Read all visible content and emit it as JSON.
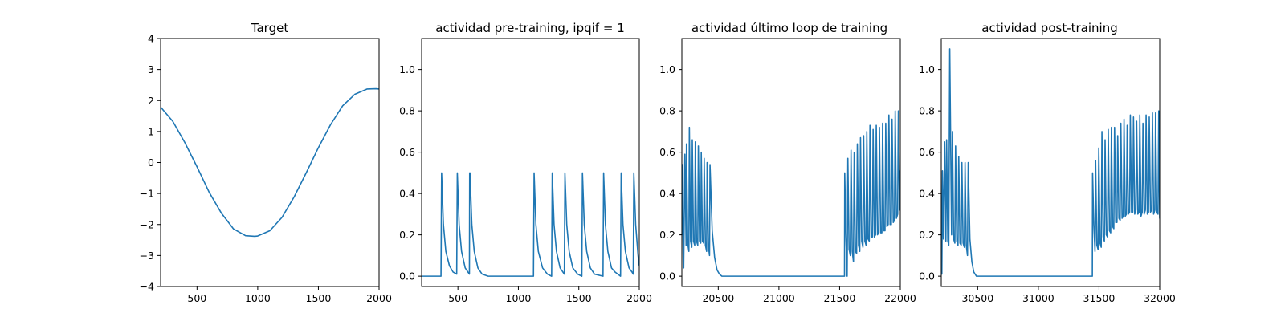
{
  "figure": {
    "background": "#ffffff",
    "line_color": "#1f77b4"
  },
  "chart_data": [
    {
      "type": "line",
      "title": "Target",
      "xlabel": "",
      "ylabel": "",
      "xlim": [
        200,
        2000
      ],
      "ylim": [
        -4,
        4
      ],
      "xticks": [
        500,
        1000,
        1500,
        2000
      ],
      "yticks": [
        -4,
        -3,
        -2,
        -1,
        0,
        1,
        2,
        3,
        4
      ],
      "ytick_labels": [
        "−4",
        "−3",
        "−2",
        "−1",
        "0",
        "1",
        "2",
        "3",
        "4"
      ],
      "grid": false,
      "series": [
        {
          "x": [
            200,
            300,
            400,
            500,
            600,
            700,
            800,
            900,
            975,
            1000,
            1100,
            1200,
            1300,
            1400,
            1500,
            1600,
            1700,
            1800,
            1900,
            1975,
            2000
          ],
          "values": [
            1.79,
            1.33,
            0.64,
            -0.14,
            -0.96,
            -1.63,
            -2.14,
            -2.36,
            -2.38,
            -2.37,
            -2.2,
            -1.77,
            -1.11,
            -0.33,
            0.48,
            1.22,
            1.83,
            2.2,
            2.37,
            2.38,
            2.37
          ]
        }
      ]
    },
    {
      "type": "line",
      "title": "actividad pre-training, ipqif = 1",
      "xlabel": "",
      "ylabel": "",
      "xlim": [
        200,
        2000
      ],
      "ylim": [
        -0.05,
        1.15
      ],
      "xticks": [
        500,
        1000,
        1500,
        2000
      ],
      "yticks": [
        0.0,
        0.2,
        0.4,
        0.6,
        0.8,
        1.0
      ],
      "ytick_labels": [
        "0.0",
        "0.2",
        "0.4",
        "0.6",
        "0.8",
        "1.0"
      ],
      "grid": false,
      "series": [
        {
          "x": [
            200,
            360,
            365,
            380,
            400,
            430,
            460,
            490,
            495,
            510,
            530,
            560,
            595,
            597,
            600,
            615,
            635,
            665,
            700,
            750,
            1125,
            1130,
            1145,
            1165,
            1200,
            1240,
            1275,
            1280,
            1295,
            1315,
            1345,
            1380,
            1385,
            1400,
            1420,
            1450,
            1490,
            1525,
            1530,
            1545,
            1565,
            1595,
            1630,
            1700,
            1705,
            1720,
            1740,
            1770,
            1800,
            1845,
            1850,
            1865,
            1885,
            1915,
            1940,
            1950,
            1955,
            1970,
            1990,
            2000
          ],
          "values": [
            0.0,
            0.0,
            0.5,
            0.25,
            0.12,
            0.05,
            0.02,
            0.01,
            0.5,
            0.25,
            0.12,
            0.04,
            0.01,
            0.5,
            0.5,
            0.25,
            0.12,
            0.04,
            0.01,
            0.0,
            0.0,
            0.5,
            0.25,
            0.12,
            0.04,
            0.01,
            0.0,
            0.5,
            0.25,
            0.12,
            0.04,
            0.01,
            0.5,
            0.25,
            0.12,
            0.04,
            0.01,
            0.0,
            0.5,
            0.25,
            0.12,
            0.04,
            0.01,
            0.0,
            0.5,
            0.25,
            0.12,
            0.04,
            0.02,
            0.0,
            0.5,
            0.25,
            0.12,
            0.04,
            0.02,
            0.01,
            0.5,
            0.25,
            0.1,
            0.05
          ]
        }
      ]
    },
    {
      "type": "line",
      "title": "actividad último loop de training",
      "xlabel": "",
      "ylabel": "",
      "xlim": [
        20200,
        22000
      ],
      "ylim": [
        -0.05,
        1.15
      ],
      "xticks": [
        20500,
        21000,
        21500,
        22000
      ],
      "yticks": [
        0.0,
        0.2,
        0.4,
        0.6,
        0.8,
        1.0
      ],
      "ytick_labels": [
        "0.0",
        "0.2",
        "0.4",
        "0.6",
        "0.8",
        "1.0"
      ],
      "grid": false,
      "series": [
        {
          "x": [
            20200,
            20205,
            20212,
            20215,
            20225,
            20235,
            20238,
            20248,
            20258,
            20262,
            20272,
            20282,
            20286,
            20296,
            20306,
            20311,
            20321,
            20331,
            20336,
            20346,
            20356,
            20360,
            20370,
            20380,
            20384,
            20394,
            20404,
            20408,
            20418,
            20428,
            20432,
            20450,
            20470,
            20490,
            20510,
            20530,
            21540,
            21542,
            21552,
            21562,
            21568,
            21578,
            21588,
            21594,
            21604,
            21614,
            21620,
            21630,
            21640,
            21646,
            21656,
            21666,
            21672,
            21682,
            21692,
            21698,
            21708,
            21718,
            21724,
            21734,
            21744,
            21750,
            21760,
            21770,
            21776,
            21786,
            21796,
            21802,
            21812,
            21822,
            21828,
            21838,
            21848,
            21854,
            21864,
            21874,
            21880,
            21890,
            21900,
            21906,
            21916,
            21926,
            21932,
            21942,
            21952,
            21958,
            21968,
            21978,
            21984,
            21994,
            22000
          ],
          "values": [
            0.2,
            0.54,
            0.05,
            0.04,
            0.59,
            0.15,
            0.64,
            0.16,
            0.12,
            0.72,
            0.17,
            0.14,
            0.66,
            0.17,
            0.15,
            0.65,
            0.17,
            0.15,
            0.63,
            0.17,
            0.16,
            0.6,
            0.17,
            0.16,
            0.57,
            0.15,
            0.12,
            0.55,
            0.15,
            0.1,
            0.54,
            0.22,
            0.09,
            0.03,
            0.01,
            0.0,
            0.0,
            0.5,
            0.2,
            0.0,
            0.57,
            0.13,
            0.1,
            0.61,
            0.12,
            0.07,
            0.6,
            0.12,
            0.11,
            0.64,
            0.15,
            0.12,
            0.67,
            0.17,
            0.14,
            0.68,
            0.17,
            0.15,
            0.7,
            0.18,
            0.17,
            0.73,
            0.19,
            0.19,
            0.71,
            0.19,
            0.2,
            0.73,
            0.2,
            0.21,
            0.72,
            0.21,
            0.21,
            0.74,
            0.22,
            0.22,
            0.74,
            0.24,
            0.25,
            0.78,
            0.25,
            0.25,
            0.76,
            0.26,
            0.27,
            0.8,
            0.28,
            0.3,
            0.8,
            0.32,
            0.51
          ]
        }
      ]
    },
    {
      "type": "line",
      "title": "actividad post-training",
      "xlabel": "",
      "ylabel": "",
      "xlim": [
        30200,
        32000
      ],
      "ylim": [
        -0.05,
        1.15
      ],
      "xticks": [
        30500,
        31000,
        31500,
        32000
      ],
      "yticks": [
        0.0,
        0.2,
        0.4,
        0.6,
        0.8,
        1.0
      ],
      "ytick_labels": [
        "0.0",
        "0.2",
        "0.4",
        "0.6",
        "0.8",
        "1.0"
      ],
      "grid": false,
      "series": [
        {
          "x": [
            30200,
            30205,
            30210,
            30218,
            30228,
            30238,
            30244,
            30254,
            30262,
            30270,
            30285,
            30292,
            30302,
            30312,
            30318,
            30328,
            30338,
            30344,
            30354,
            30364,
            30370,
            30380,
            30390,
            30396,
            30406,
            30416,
            30422,
            30436,
            30452,
            30468,
            30490,
            30520,
            31445,
            31447,
            31457,
            31467,
            31472,
            31482,
            31492,
            31498,
            31508,
            31518,
            31524,
            31534,
            31544,
            31550,
            31560,
            31570,
            31576,
            31586,
            31596,
            31602,
            31612,
            31622,
            31628,
            31638,
            31648,
            31654,
            31664,
            31674,
            31680,
            31690,
            31700,
            31706,
            31716,
            31726,
            31732,
            31742,
            31752,
            31758,
            31768,
            31778,
            31784,
            31794,
            31804,
            31810,
            31820,
            31830,
            31836,
            31846,
            31856,
            31862,
            31872,
            31882,
            31888,
            31898,
            31908,
            31914,
            31924,
            31934,
            31940,
            31950,
            31960,
            31966,
            31976,
            31986,
            31992,
            32000
          ],
          "values": [
            0.15,
            0.01,
            0.51,
            0.18,
            0.65,
            0.17,
            0.66,
            0.17,
            0.15,
            1.1,
            0.2,
            0.7,
            0.18,
            0.16,
            0.63,
            0.17,
            0.15,
            0.58,
            0.16,
            0.15,
            0.55,
            0.16,
            0.14,
            0.55,
            0.15,
            0.1,
            0.55,
            0.18,
            0.07,
            0.02,
            0.0,
            0.0,
            0.0,
            0.5,
            0.25,
            0.12,
            0.56,
            0.15,
            0.13,
            0.62,
            0.16,
            0.14,
            0.7,
            0.19,
            0.17,
            0.66,
            0.2,
            0.19,
            0.71,
            0.22,
            0.21,
            0.72,
            0.24,
            0.23,
            0.72,
            0.26,
            0.26,
            0.68,
            0.28,
            0.27,
            0.74,
            0.28,
            0.29,
            0.76,
            0.29,
            0.3,
            0.73,
            0.3,
            0.31,
            0.78,
            0.31,
            0.31,
            0.77,
            0.3,
            0.32,
            0.75,
            0.3,
            0.31,
            0.78,
            0.29,
            0.31,
            0.74,
            0.3,
            0.32,
            0.78,
            0.3,
            0.31,
            0.77,
            0.31,
            0.32,
            0.79,
            0.3,
            0.32,
            0.79,
            0.31,
            0.3,
            0.8,
            0.28
          ]
        }
      ]
    }
  ]
}
